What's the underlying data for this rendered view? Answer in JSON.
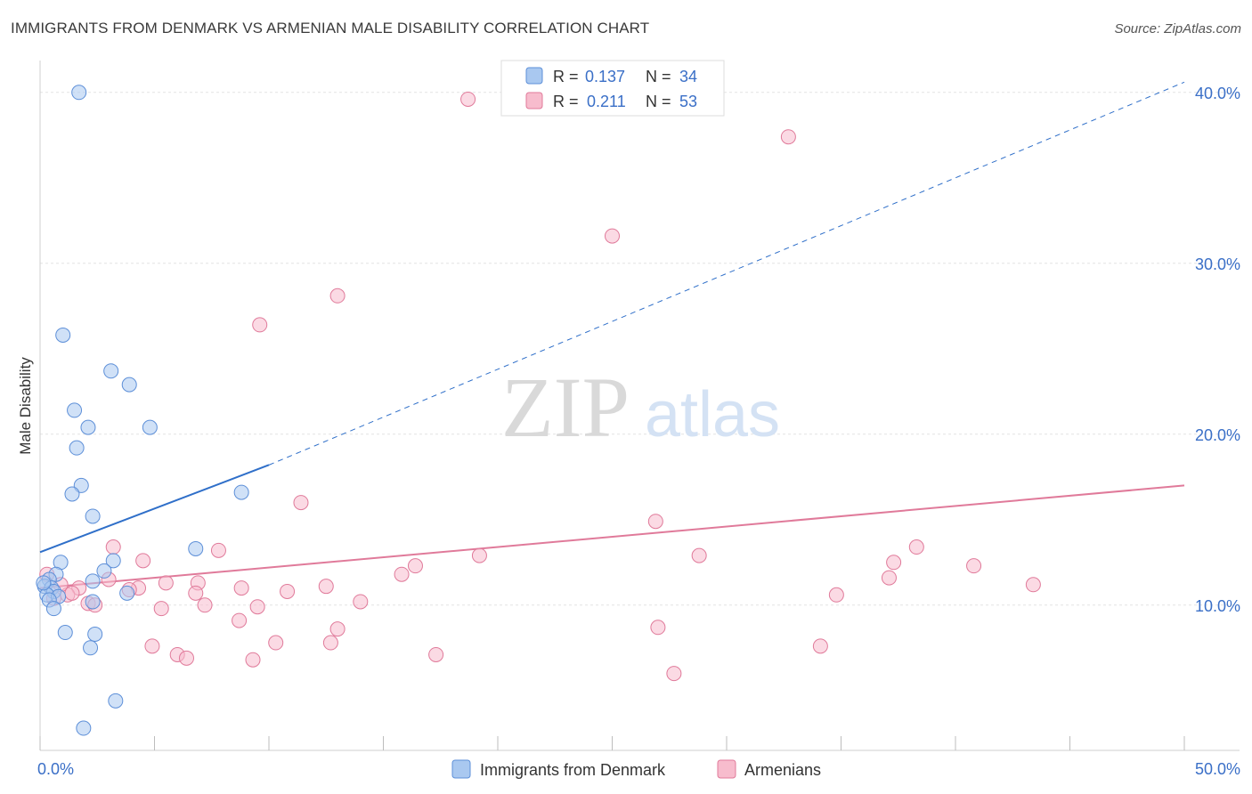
{
  "header": {
    "title": "IMMIGRANTS FROM DENMARK VS ARMENIAN MALE DISABILITY CORRELATION CHART",
    "source": "Source: ZipAtlas.com"
  },
  "watermark": {
    "zip": "ZIP",
    "atlas": "atlas"
  },
  "legend_box": {
    "rows": [
      {
        "r_label": "R = ",
        "r_value": "0.137",
        "n_label": "N = ",
        "n_value": "34",
        "color": "#a9c8f0",
        "stroke": "#5d8fd8"
      },
      {
        "r_label": "R = ",
        "r_value": "0.211",
        "n_label": "N = ",
        "n_value": "53",
        "color": "#f7bccd",
        "stroke": "#e07a9a"
      }
    ]
  },
  "chart_data": {
    "type": "scatter",
    "title": "IMMIGRANTS FROM DENMARK VS ARMENIAN MALE DISABILITY CORRELATION CHART",
    "xlabel": "",
    "ylabel": "Male Disability",
    "xlim": [
      0,
      50
    ],
    "ylim": [
      1.5,
      41.5
    ],
    "x_tick_labels": [
      "0.0%",
      "50.0%"
    ],
    "y_ticks": [
      10,
      20,
      30,
      40
    ],
    "y_tick_labels": [
      "10.0%",
      "20.0%",
      "30.0%",
      "40.0%"
    ],
    "grid": true,
    "legend": "bottom",
    "series": [
      {
        "name": "Immigrants from Denmark",
        "color": "#a9c8f0",
        "stroke": "#5d8fd8",
        "line_color": "#2f6fc9",
        "trend": {
          "x0": 0,
          "y0": 13.1,
          "x1": 10,
          "y1": 18.2,
          "x_solid_end": 10,
          "x_dashed_end": 50,
          "y_dashed_end": 40.6
        },
        "points": [
          [
            1.7,
            40.0
          ],
          [
            1.0,
            25.8
          ],
          [
            3.1,
            23.7
          ],
          [
            3.9,
            22.9
          ],
          [
            1.5,
            21.4
          ],
          [
            2.1,
            20.4
          ],
          [
            4.8,
            20.4
          ],
          [
            1.6,
            19.2
          ],
          [
            1.8,
            17.0
          ],
          [
            1.4,
            16.5
          ],
          [
            8.8,
            16.6
          ],
          [
            2.3,
            15.2
          ],
          [
            6.8,
            13.3
          ],
          [
            0.9,
            12.5
          ],
          [
            3.2,
            12.6
          ],
          [
            2.8,
            12.0
          ],
          [
            0.7,
            11.8
          ],
          [
            0.4,
            11.5
          ],
          [
            2.3,
            11.4
          ],
          [
            0.2,
            11.1
          ],
          [
            0.5,
            11.0
          ],
          [
            0.6,
            10.8
          ],
          [
            0.3,
            10.6
          ],
          [
            3.8,
            10.7
          ],
          [
            0.8,
            10.5
          ],
          [
            0.4,
            10.3
          ],
          [
            2.3,
            10.2
          ],
          [
            0.6,
            9.8
          ],
          [
            1.1,
            8.4
          ],
          [
            2.4,
            8.3
          ],
          [
            2.2,
            7.5
          ],
          [
            3.3,
            4.4
          ],
          [
            1.9,
            2.8
          ],
          [
            0.15,
            11.3
          ]
        ]
      },
      {
        "name": "Armenians",
        "color": "#f7bccd",
        "stroke": "#e07a9a",
        "line_color": "#e07a9a",
        "trend": {
          "x0": 0,
          "y0": 11.0,
          "x1": 50,
          "y1": 17.0
        },
        "points": [
          [
            18.7,
            39.6
          ],
          [
            32.7,
            37.4
          ],
          [
            25.0,
            31.6
          ],
          [
            13.0,
            28.1
          ],
          [
            9.6,
            26.4
          ],
          [
            11.4,
            16.0
          ],
          [
            26.9,
            14.9
          ],
          [
            3.2,
            13.4
          ],
          [
            7.8,
            13.2
          ],
          [
            38.3,
            13.4
          ],
          [
            19.2,
            12.9
          ],
          [
            28.8,
            12.9
          ],
          [
            4.5,
            12.6
          ],
          [
            37.3,
            12.5
          ],
          [
            16.4,
            12.3
          ],
          [
            40.8,
            12.3
          ],
          [
            15.8,
            11.8
          ],
          [
            37.1,
            11.6
          ],
          [
            3.0,
            11.5
          ],
          [
            0.3,
            11.8
          ],
          [
            5.5,
            11.3
          ],
          [
            6.9,
            11.3
          ],
          [
            12.5,
            11.1
          ],
          [
            43.4,
            11.2
          ],
          [
            8.8,
            11.0
          ],
          [
            1.7,
            11.0
          ],
          [
            4.3,
            11.0
          ],
          [
            3.9,
            10.9
          ],
          [
            10.8,
            10.8
          ],
          [
            34.8,
            10.6
          ],
          [
            6.8,
            10.7
          ],
          [
            1.2,
            10.6
          ],
          [
            0.6,
            10.4
          ],
          [
            14.0,
            10.2
          ],
          [
            2.1,
            10.1
          ],
          [
            2.4,
            10.0
          ],
          [
            7.2,
            10.0
          ],
          [
            5.3,
            9.8
          ],
          [
            9.5,
            9.9
          ],
          [
            8.7,
            9.1
          ],
          [
            27.0,
            8.7
          ],
          [
            13.0,
            8.6
          ],
          [
            10.3,
            7.8
          ],
          [
            12.7,
            7.8
          ],
          [
            4.9,
            7.6
          ],
          [
            34.1,
            7.6
          ],
          [
            6.0,
            7.1
          ],
          [
            17.3,
            7.1
          ],
          [
            6.4,
            6.9
          ],
          [
            9.3,
            6.8
          ],
          [
            27.7,
            6.0
          ],
          [
            1.4,
            10.7
          ],
          [
            0.9,
            11.2
          ]
        ]
      }
    ]
  }
}
